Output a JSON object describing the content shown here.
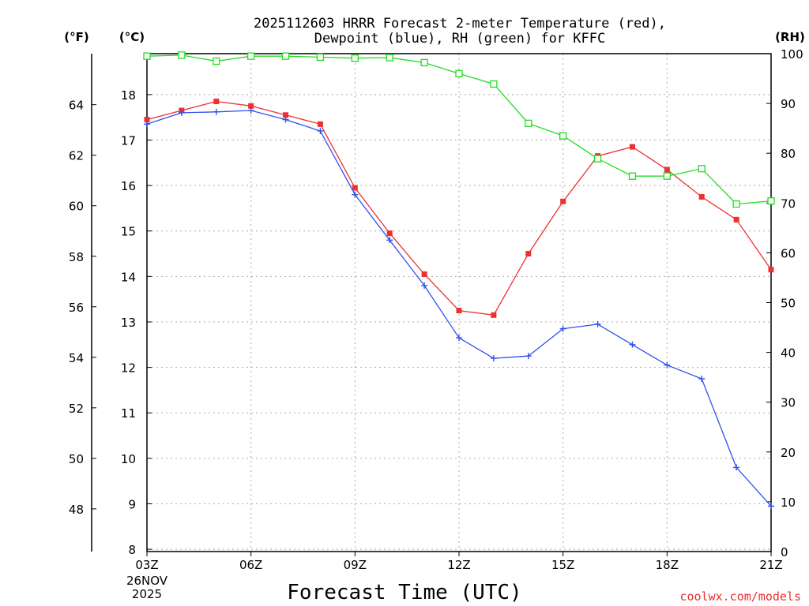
{
  "chart_data": {
    "type": "line",
    "title_line1": "2025112603 HRRR Forecast 2-meter Temperature (red),",
    "title_line2": "Dewpoint (blue), RH (green) for KFFC",
    "xlabel": "Forecast Time (UTC)",
    "unit_f": "(°F)",
    "unit_c": "(°C)",
    "unit_rh": "(RH)",
    "watermark": "coolwx.com/models",
    "x_ticks": [
      "03Z",
      "06Z",
      "09Z",
      "12Z",
      "15Z",
      "18Z",
      "21Z"
    ],
    "x_tick_hours": [
      3,
      6,
      9,
      12,
      15,
      18,
      21
    ],
    "date_line1": "26NOV",
    "date_line2": "2025",
    "xlim": [
      3,
      21
    ],
    "c_ticks": [
      "8",
      "9",
      "10",
      "11",
      "12",
      "13",
      "14",
      "15",
      "16",
      "17",
      "18"
    ],
    "c_values": [
      8,
      9,
      10,
      11,
      12,
      13,
      14,
      15,
      16,
      17,
      18
    ],
    "ylim_c": [
      7.95,
      18.9
    ],
    "f_ticks": [
      "48",
      "50",
      "52",
      "54",
      "56",
      "58",
      "60",
      "62",
      "64"
    ],
    "f_values": [
      48,
      50,
      52,
      54,
      56,
      58,
      60,
      62,
      64
    ],
    "rh_ticks": [
      "0",
      "10",
      "20",
      "30",
      "40",
      "50",
      "60",
      "70",
      "80",
      "90",
      "100"
    ],
    "rh_values": [
      0,
      10,
      20,
      30,
      40,
      50,
      60,
      70,
      80,
      90,
      100
    ],
    "ylim_rh": [
      0,
      100
    ],
    "hours": [
      3,
      4,
      5,
      6,
      7,
      8,
      9,
      10,
      11,
      12,
      13,
      14,
      15,
      16,
      17,
      18,
      19,
      20,
      21
    ],
    "series": [
      {
        "name": "Temperature",
        "color": "#ee3030",
        "marker": "filled-square",
        "axis": "celsius",
        "values": [
          17.45,
          17.65,
          17.85,
          17.75,
          17.55,
          17.35,
          15.95,
          14.95,
          14.05,
          13.25,
          13.15,
          14.5,
          15.65,
          16.65,
          16.85,
          16.35,
          15.75,
          15.25,
          14.15
        ]
      },
      {
        "name": "Dewpoint",
        "color": "#3050ee",
        "marker": "plus",
        "axis": "celsius",
        "values": [
          17.35,
          17.6,
          17.62,
          17.65,
          17.45,
          17.2,
          15.8,
          14.8,
          13.8,
          12.65,
          12.2,
          12.25,
          12.85,
          12.95,
          12.5,
          12.05,
          11.75,
          9.8,
          8.95
        ]
      },
      {
        "name": "RH",
        "color": "#20dd20",
        "marker": "open-square",
        "axis": "rh",
        "values": [
          99.5,
          99.7,
          98.5,
          99.5,
          99.5,
          99.3,
          99.1,
          99.2,
          98.2,
          96.0,
          93.9,
          86.0,
          83.5,
          78.9,
          75.4,
          75.4,
          76.9,
          69.8,
          70.4
        ]
      }
    ]
  }
}
